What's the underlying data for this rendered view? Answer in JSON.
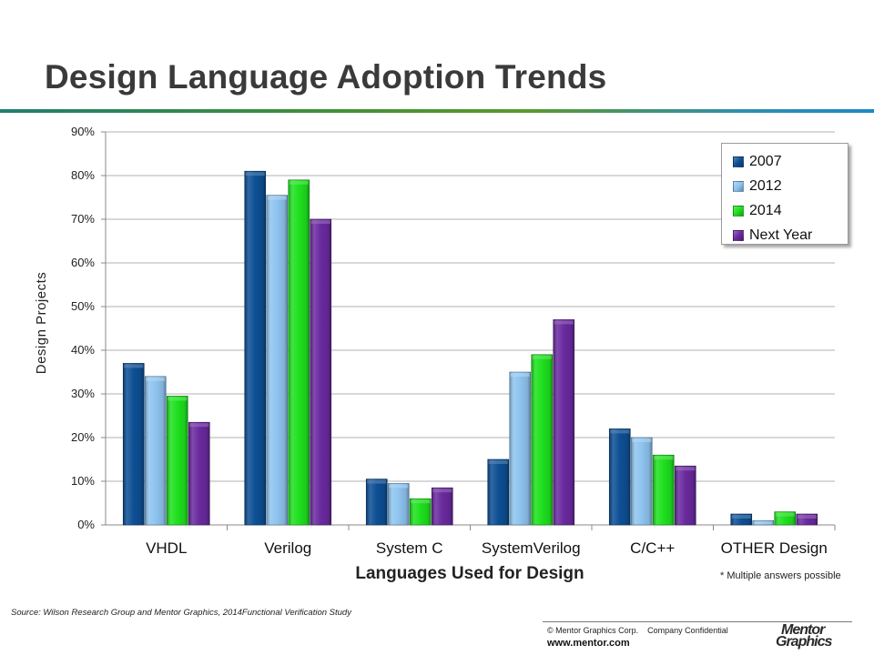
{
  "page": {
    "title": "Design Language Adoption Trends",
    "note": "* Multiple answers possible",
    "source": "Source:  Wilson Research Group and Mentor Graphics, 2014Functional Verification Study",
    "copyright": "© Mentor Graphics Corp.    Company Confidential",
    "website": "www.mentor.com",
    "logo_line1": "Mentor",
    "logo_line2": "Graphics"
  },
  "colors": {
    "2007": "#0d4f94",
    "2012": "#8ec4ef",
    "2014": "#1ee01e",
    "Next Year": "#6a2a9e"
  },
  "chart_data": {
    "type": "bar",
    "title": "Design Language Adoption Trends",
    "xlabel": "Languages Used for Design",
    "ylabel": "Design Projects",
    "ylim": [
      0,
      90
    ],
    "yticks": [
      0,
      10,
      20,
      30,
      40,
      50,
      60,
      70,
      80,
      90
    ],
    "ytick_labels": [
      "0%",
      "10%",
      "20%",
      "30%",
      "40%",
      "50%",
      "60%",
      "70%",
      "80%",
      "90%"
    ],
    "grid": true,
    "legend_position": "top-right",
    "categories": [
      "VHDL",
      "Verilog",
      "System C",
      "SystemVerilog",
      "C/C++",
      "OTHER Design"
    ],
    "series": [
      {
        "name": "2007",
        "values": [
          37,
          81,
          10.5,
          15,
          22,
          2.5
        ]
      },
      {
        "name": "2012",
        "values": [
          34,
          75.5,
          9.5,
          35,
          20,
          1
        ]
      },
      {
        "name": "2014",
        "values": [
          29.5,
          79,
          6,
          39,
          16,
          3
        ]
      },
      {
        "name": "Next Year",
        "values": [
          23.5,
          70,
          8.5,
          47,
          13.5,
          2.5
        ]
      }
    ]
  }
}
